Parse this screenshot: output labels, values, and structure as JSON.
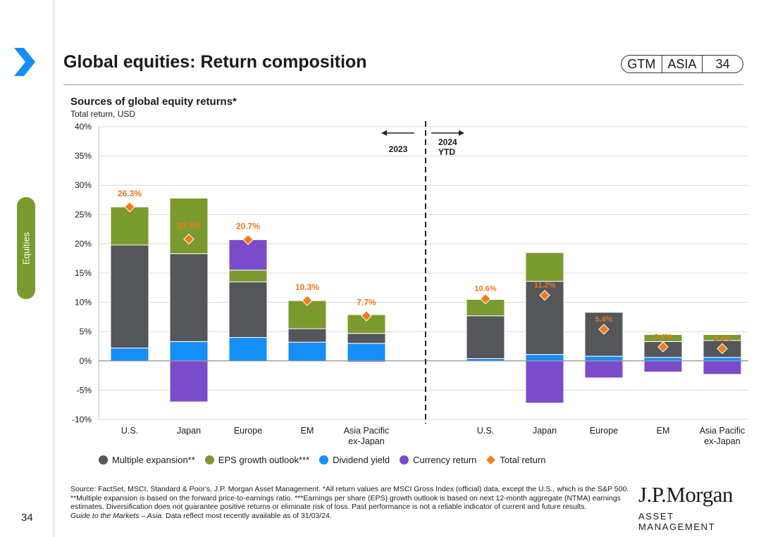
{
  "header": {
    "title": "Global equities: Return composition",
    "badge": [
      "GTM",
      "ASIA",
      "34"
    ]
  },
  "sidebar": {
    "tab_label": "Equities",
    "page_number": "34"
  },
  "colors": {
    "multiple_expansion": "#54565a",
    "eps_growth": "#7a9a2e",
    "dividend_yield": "#168ef7",
    "currency_return": "#7b4cc9",
    "total_return": "#f07d1a",
    "label_orange": "#e8791f"
  },
  "chart_data": {
    "type": "bar",
    "stacked": true,
    "title": "Sources of global equity returns*",
    "subtitle": "Total return, USD",
    "yaxis": {
      "min": -10,
      "max": 40,
      "step": 5,
      "tick_labels": [
        "-10%",
        "-5%",
        "0%",
        "5%",
        "10%",
        "15%",
        "20%",
        "25%",
        "30%",
        "35%",
        "40%"
      ]
    },
    "period_labels": [
      "2023",
      "2024\nYTD"
    ],
    "groups": [
      {
        "period": "2023",
        "categories": [
          "U.S.",
          "Japan",
          "Europe",
          "EM",
          "Asia Pacific\nex-Japan"
        ],
        "series": [
          {
            "name": "Dividend yield",
            "values": [
              2.2,
              3.3,
              4.0,
              3.2,
              3.0
            ]
          },
          {
            "name": "Multiple expansion**",
            "values": [
              17.6,
              15.0,
              9.5,
              2.3,
              1.7
            ]
          },
          {
            "name": "EPS growth outlook***",
            "values": [
              6.5,
              9.5,
              2.0,
              4.8,
              3.2
            ]
          },
          {
            "name": "Currency return",
            "values": [
              0,
              -7.0,
              5.2,
              0,
              -0.2
            ]
          }
        ],
        "total_return": [
          26.3,
          20.8,
          20.7,
          10.3,
          7.7
        ],
        "total_labels": [
          "26.3%",
          "20.8%",
          "20.7%",
          "10.3%",
          "7.7%"
        ]
      },
      {
        "period": "2024 YTD",
        "categories": [
          "U.S.",
          "Japan",
          "Europe",
          "EM",
          "Asia Pacific\nex-Japan"
        ],
        "series": [
          {
            "name": "Dividend yield",
            "values": [
              0.4,
              1.1,
              0.8,
              0.6,
              0.6
            ]
          },
          {
            "name": "Multiple expansion**",
            "values": [
              7.3,
              12.5,
              7.5,
              2.7,
              2.9
            ]
          },
          {
            "name": "EPS growth outlook***",
            "values": [
              2.8,
              4.9,
              0,
              1.2,
              1.0
            ]
          },
          {
            "name": "Currency return",
            "values": [
              0,
              -7.2,
              -2.9,
              -1.9,
              -2.3
            ]
          }
        ],
        "total_return": [
          10.6,
          11.2,
          5.4,
          2.4,
          2.1
        ],
        "total_labels": [
          "10.6%",
          "11.2%",
          "5.4%",
          "2.4%",
          "2.1%"
        ]
      }
    ],
    "legend": [
      "Multiple expansion**",
      "EPS growth outlook***",
      "Dividend yield",
      "Currency return",
      "Total return"
    ],
    "legend_position": "bottom"
  },
  "footer": {
    "source_line1": "Source: FactSet, MSCI, Standard & Poor's, J.P. Morgan Asset Management. *All return values are MSCI Gross Index (official) data, except the U.S., which is the S&P 500.",
    "source_line2": "**Multiple expansion is based on the forward price-to-earnings ratio. ***Earnings per share (EPS) growth outlook is based on next 12-month aggregate (NTMA) earnings estimates. Diversification does not guarantee positive returns or eliminate risk of loss. Past performance is not a reliable indicator of current and future results.",
    "guide_italic": "Guide to the Markets – Asia.",
    "guide_rest": " Data reflect most recently available as of 31/03/24."
  },
  "logo": {
    "name": "J.P.Morgan",
    "sub": "ASSET MANAGEMENT"
  }
}
